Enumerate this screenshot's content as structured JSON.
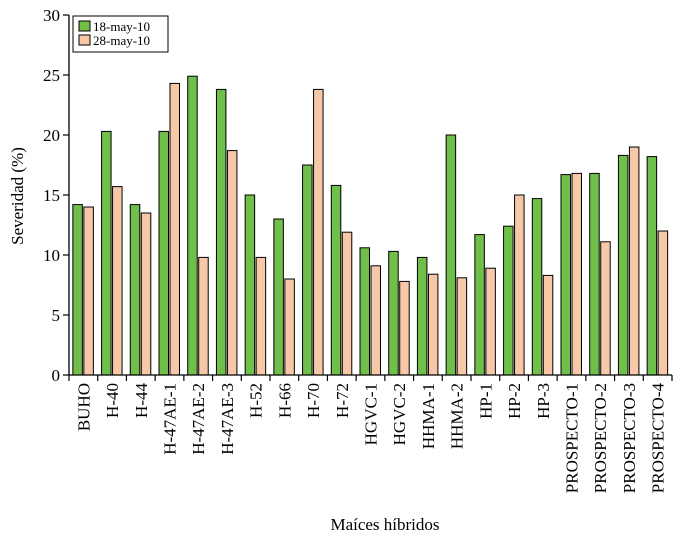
{
  "chart_data": {
    "type": "bar",
    "title": "",
    "xlabel": "Maíces híbridos",
    "ylabel": "Severidad (%)",
    "ylim": [
      0,
      30
    ],
    "yticks": [
      "0",
      "5",
      "10",
      "15",
      "20",
      "25",
      "30"
    ],
    "legend_position": "top-left",
    "grid": false,
    "categories": [
      "BUHO",
      "H-40",
      "H-44",
      "H-47AE-1",
      "H-47AE-2",
      "H-47AE-3",
      "H-52",
      "H-66",
      "H-70",
      "H-72",
      "HGVC-1",
      "HGVC-2",
      "HHMA-1",
      "HHMA-2",
      "HP-1",
      "HP-2",
      "HP-3",
      "PROSPECTO-1",
      "PROSPECTO-2",
      "PROSPECTO-3",
      "PROSPECTO-4"
    ],
    "series": [
      {
        "name": "18-may-10",
        "color": "#6fbf4a",
        "values": [
          14.2,
          20.3,
          14.2,
          20.3,
          24.9,
          23.8,
          15.0,
          13.0,
          17.5,
          15.8,
          10.6,
          10.3,
          9.8,
          20.0,
          11.7,
          12.4,
          14.7,
          16.7,
          16.8,
          18.3,
          18.2
        ]
      },
      {
        "name": "28-may-10",
        "color": "#f7c8a8",
        "values": [
          14.0,
          15.7,
          13.5,
          24.3,
          9.8,
          18.7,
          9.8,
          8.0,
          23.8,
          11.9,
          9.1,
          7.8,
          8.4,
          8.1,
          8.9,
          15.0,
          8.3,
          16.8,
          11.1,
          19.0,
          12.0
        ]
      }
    ]
  }
}
